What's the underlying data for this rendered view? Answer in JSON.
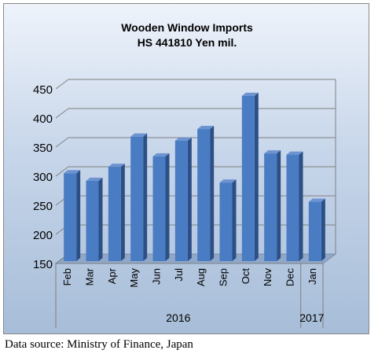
{
  "chart_data": {
    "type": "bar",
    "title": "Wooden Window Imports",
    "subtitle": "HS 441810 Yen mil.",
    "categories": [
      "Feb",
      "Mar",
      "Apr",
      "May",
      "Jun",
      "Jul",
      "Aug",
      "Sep",
      "Oct",
      "Nov",
      "Dec",
      "Jan"
    ],
    "values": [
      305,
      292,
      316,
      368,
      334,
      361,
      381,
      289,
      438,
      339,
      337,
      256
    ],
    "year_groups": [
      {
        "label": "2016",
        "span": 11
      },
      {
        "label": "2017",
        "span": 1
      }
    ],
    "ylim": [
      150,
      450
    ],
    "yticks": [
      150,
      200,
      250,
      300,
      350,
      400,
      450
    ],
    "grid": true,
    "bar_color": "#4a7cc4"
  },
  "footer": {
    "source": "Data source: Ministry of Finance, Japan"
  }
}
